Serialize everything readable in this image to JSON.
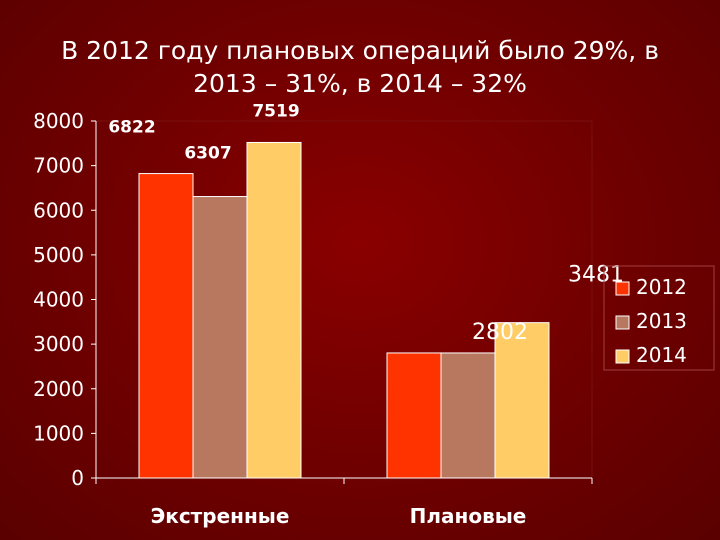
{
  "title_line1": "В 2012 году плановых операций было 29%, в",
  "title_line2": "2013 – 31%, в 2014 – 32%",
  "colors": {
    "background": "#6e0000",
    "series": [
      "#ff3300",
      "#b87860",
      "#ffcc66"
    ],
    "gridline": "#ffffff"
  },
  "chart_data": {
    "type": "bar",
    "categories": [
      "Экстренные",
      "Плановые"
    ],
    "series": [
      {
        "name": "2012",
        "values": [
          6822,
          2802
        ]
      },
      {
        "name": "2013",
        "values": [
          6307,
          2802
        ]
      },
      {
        "name": "2014",
        "values": [
          7519,
          3481
        ]
      }
    ],
    "data_labels": [
      {
        "text": "6822",
        "series": 0,
        "category": 0
      },
      {
        "text": "6307",
        "series": 1,
        "category": 0
      },
      {
        "text": "7519",
        "series": 2,
        "category": 0
      },
      {
        "text": "2802",
        "series": 1,
        "category": 1
      },
      {
        "text": "3481",
        "series": 2,
        "category": 1
      }
    ],
    "yticks": [
      "0",
      "1000",
      "2000",
      "3000",
      "4000",
      "5000",
      "6000",
      "7000",
      "8000"
    ],
    "ylim": [
      0,
      8000
    ],
    "grid": false,
    "legend": "right"
  }
}
